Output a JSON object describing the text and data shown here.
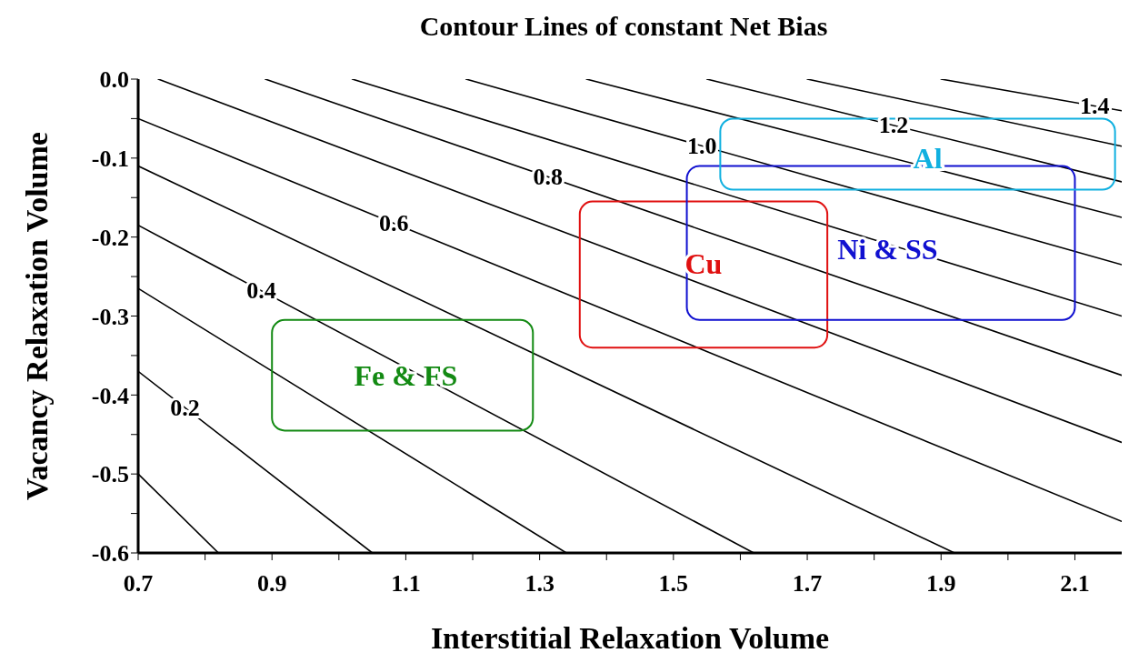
{
  "chart_data": {
    "type": "line",
    "title": "Contour Lines of constant Net Bias",
    "xlabel": "Interstitial Relaxation Volume",
    "ylabel": "Vacancy Relaxation Volume",
    "xlim": [
      0.7,
      2.17
    ],
    "ylim": [
      -0.6,
      0
    ],
    "xticks": [
      0.7,
      {
        "value": 0.8,
        "label": null
      },
      0.9,
      {
        "value": 1.0,
        "label": null
      },
      1.1,
      {
        "value": 1.2,
        "label": null
      },
      1.3,
      {
        "value": 1.4,
        "label": null
      },
      1.5,
      {
        "value": 1.6,
        "label": null
      },
      1.7,
      {
        "value": 1.8,
        "label": null
      },
      1.9,
      {
        "value": 2.0,
        "label": null
      },
      2.1
    ],
    "yticks": [
      {
        "value": 0,
        "label": "0.0"
      },
      {
        "value": -0.05,
        "label": null
      },
      -0.1,
      {
        "value": -0.15,
        "label": null
      },
      -0.2,
      {
        "value": -0.25,
        "label": null
      },
      -0.3,
      {
        "value": -0.35,
        "label": null
      },
      -0.4,
      {
        "value": -0.45,
        "label": null
      },
      -0.5,
      {
        "value": -0.55,
        "label": null
      },
      -0.6
    ],
    "marker": "none",
    "line_style": "solid",
    "series": [
      {
        "color": "#000000",
        "x": [
          0.7,
          0.82
        ],
        "values": [
          -0.5,
          -0.6
        ]
      },
      {
        "name": "0.2",
        "color": "#000000",
        "x": [
          0.7,
          1.05
        ],
        "values": [
          -0.37,
          -0.6
        ]
      },
      {
        "color": "#000000",
        "x": [
          0.7,
          1.34
        ],
        "values": [
          -0.265,
          -0.6
        ]
      },
      {
        "name": "0.4",
        "color": "#000000",
        "x": [
          0.7,
          1.62
        ],
        "values": [
          -0.185,
          -0.6
        ]
      },
      {
        "color": "#000000",
        "x": [
          0.7,
          1.92
        ],
        "values": [
          -0.11,
          -0.6
        ]
      },
      {
        "name": "0.6",
        "color": "#000000",
        "x": [
          0.7,
          2.17
        ],
        "values": [
          -0.05,
          -0.56
        ]
      },
      {
        "color": "#000000",
        "x": [
          0.73,
          2.17
        ],
        "values": [
          0,
          -0.46
        ]
      },
      {
        "name": "0.8",
        "color": "#000000",
        "x": [
          0.89,
          2.17
        ],
        "values": [
          0,
          -0.375
        ]
      },
      {
        "color": "#000000",
        "x": [
          1.02,
          2.17
        ],
        "values": [
          0,
          -0.3
        ]
      },
      {
        "name": "1.0",
        "color": "#000000",
        "x": [
          1.19,
          2.17
        ],
        "values": [
          0,
          -0.235
        ]
      },
      {
        "color": "#000000",
        "x": [
          1.37,
          2.17
        ],
        "values": [
          0,
          -0.175
        ]
      },
      {
        "name": "1.2",
        "color": "#000000",
        "x": [
          1.55,
          2.17
        ],
        "values": [
          0,
          -0.13
        ]
      },
      {
        "color": "#000000",
        "x": [
          1.7,
          2.17
        ],
        "values": [
          0,
          -0.085
        ]
      },
      {
        "name": "1.4",
        "color": "#000000",
        "x": [
          1.9,
          2.17
        ],
        "values": [
          0,
          -0.04
        ]
      }
    ],
    "annotations": [
      "Fe & FS",
      "Cu",
      "Ni & SS",
      "Al"
    ]
  }
}
